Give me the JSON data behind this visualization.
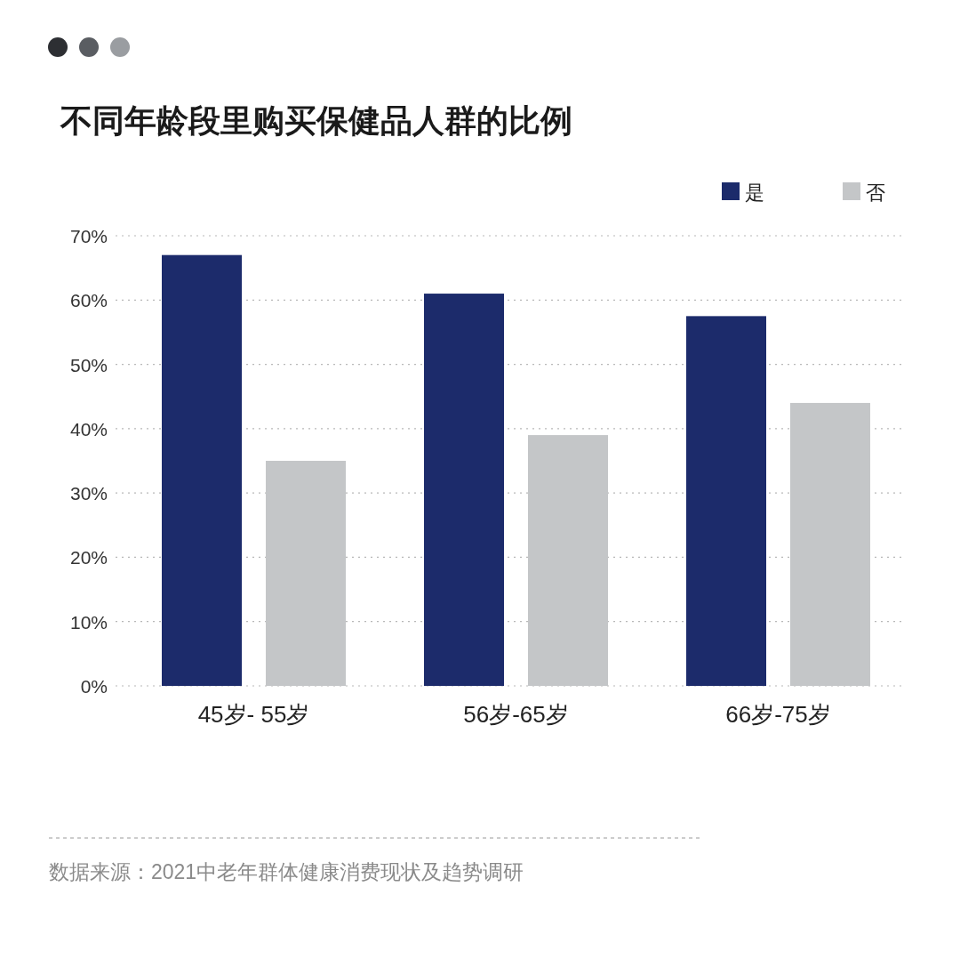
{
  "chart_data": {
    "type": "bar",
    "title": "不同年龄段里购买保健品人群的比例",
    "categories": [
      "45岁- 55岁",
      "56岁-65岁",
      "66岁-75岁"
    ],
    "series": [
      {
        "name": "是",
        "color": "#1c2b6b",
        "values": [
          67,
          61,
          57.5
        ]
      },
      {
        "name": "否",
        "color": "#c4c6c8",
        "values": [
          35,
          39,
          44
        ]
      }
    ],
    "ylim": [
      0,
      70
    ],
    "yticks": [
      {
        "value": 0,
        "label": "0%"
      },
      {
        "value": 10,
        "label": "10%"
      },
      {
        "value": 20,
        "label": "20%"
      },
      {
        "value": 30,
        "label": "30%"
      },
      {
        "value": 40,
        "label": "40%"
      },
      {
        "value": 50,
        "label": "50%"
      },
      {
        "value": 60,
        "label": "60%"
      },
      {
        "value": 70,
        "label": "70%"
      }
    ],
    "grid": "y",
    "legend": "top right",
    "annotations": [
      "数据来源：2021中老年群体健康消费现状及趋势调研"
    ]
  }
}
